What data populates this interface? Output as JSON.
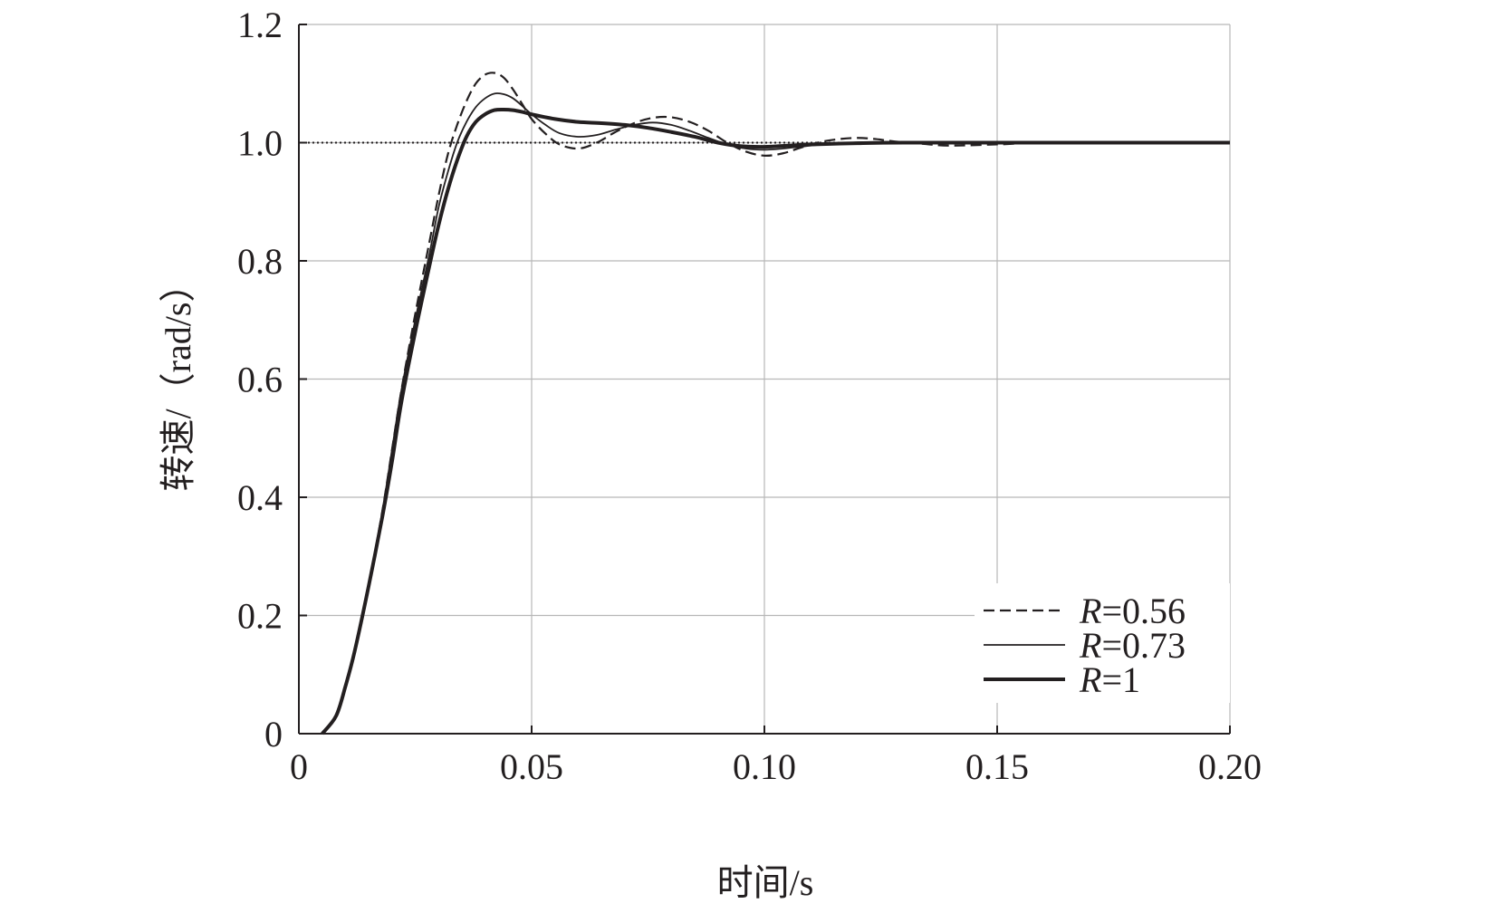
{
  "chart_data": {
    "type": "line",
    "title": "",
    "xlabel": "时间/s",
    "ylabel": "转速/（rad/s）",
    "xlim": [
      0,
      0.2
    ],
    "ylim": [
      0,
      1.2
    ],
    "xticks": [
      0,
      0.05,
      0.1,
      0.15,
      0.2
    ],
    "xtick_labels": [
      "0",
      "0.05",
      "0.10",
      "0.15",
      "0.20"
    ],
    "yticks": [
      0,
      0.2,
      0.4,
      0.6,
      0.8,
      1.0,
      1.2
    ],
    "ytick_labels": [
      "0",
      "0.2",
      "0.4",
      "0.6",
      "0.8",
      "1.0",
      "1.2"
    ],
    "grid": true,
    "legend_position": "bottom-right",
    "reference_line": {
      "y": 1.0,
      "style": "dotted"
    },
    "series": [
      {
        "name": "R=0.56",
        "legend_italic": "R",
        "legend_rest": "=0.56",
        "style": "dashed",
        "color": "#231f20",
        "x": [
          0.005,
          0.008,
          0.01,
          0.012,
          0.015,
          0.018,
          0.02,
          0.022,
          0.025,
          0.028,
          0.03,
          0.032,
          0.034,
          0.036,
          0.038,
          0.04,
          0.042,
          0.044,
          0.046,
          0.048,
          0.05,
          0.053,
          0.056,
          0.06,
          0.064,
          0.068,
          0.072,
          0.076,
          0.08,
          0.084,
          0.088,
          0.092,
          0.096,
          0.1,
          0.104,
          0.108,
          0.112,
          0.116,
          0.12,
          0.124,
          0.128,
          0.134,
          0.14,
          0.15,
          0.16,
          0.17,
          0.18,
          0.19,
          0.2
        ],
        "y": [
          0.0,
          0.03,
          0.08,
          0.14,
          0.25,
          0.38,
          0.48,
          0.58,
          0.71,
          0.83,
          0.91,
          0.98,
          1.03,
          1.07,
          1.1,
          1.115,
          1.118,
          1.11,
          1.09,
          1.065,
          1.04,
          1.015,
          0.997,
          0.99,
          1.0,
          1.018,
          1.033,
          1.042,
          1.043,
          1.035,
          1.02,
          1.0,
          0.985,
          0.978,
          0.982,
          0.992,
          1.001,
          1.006,
          1.008,
          1.006,
          1.002,
          0.998,
          0.995,
          0.997,
          1.0,
          1.0,
          1.0,
          1.0,
          1.0
        ]
      },
      {
        "name": "R=0.73",
        "legend_italic": "R",
        "legend_rest": "=0.73",
        "style": "thin",
        "color": "#231f20",
        "x": [
          0.005,
          0.008,
          0.01,
          0.012,
          0.015,
          0.018,
          0.02,
          0.022,
          0.025,
          0.028,
          0.03,
          0.032,
          0.034,
          0.036,
          0.038,
          0.04,
          0.042,
          0.044,
          0.046,
          0.048,
          0.05,
          0.053,
          0.056,
          0.06,
          0.064,
          0.068,
          0.072,
          0.076,
          0.08,
          0.084,
          0.088,
          0.092,
          0.096,
          0.1,
          0.104,
          0.11,
          0.116,
          0.122,
          0.13,
          0.14,
          0.15,
          0.16,
          0.18,
          0.2
        ],
        "y": [
          0.0,
          0.03,
          0.08,
          0.14,
          0.25,
          0.38,
          0.48,
          0.58,
          0.7,
          0.81,
          0.89,
          0.95,
          1.0,
          1.035,
          1.06,
          1.075,
          1.083,
          1.082,
          1.075,
          1.062,
          1.048,
          1.03,
          1.016,
          1.01,
          1.013,
          1.022,
          1.03,
          1.034,
          1.03,
          1.02,
          1.008,
          0.997,
          0.99,
          0.988,
          0.99,
          0.995,
          0.999,
          1.001,
          1.001,
          0.999,
          0.999,
          1.0,
          1.0,
          1.0
        ]
      },
      {
        "name": "R=1",
        "legend_italic": "R",
        "legend_rest": "=1",
        "style": "thick",
        "color": "#231f20",
        "x": [
          0.005,
          0.008,
          0.01,
          0.012,
          0.015,
          0.018,
          0.02,
          0.022,
          0.025,
          0.028,
          0.03,
          0.032,
          0.034,
          0.036,
          0.038,
          0.04,
          0.042,
          0.044,
          0.046,
          0.048,
          0.05,
          0.055,
          0.06,
          0.065,
          0.07,
          0.075,
          0.08,
          0.085,
          0.09,
          0.095,
          0.1,
          0.105,
          0.11,
          0.12,
          0.13,
          0.15,
          0.17,
          0.2
        ],
        "y": [
          0.0,
          0.03,
          0.08,
          0.14,
          0.25,
          0.37,
          0.46,
          0.56,
          0.68,
          0.79,
          0.86,
          0.92,
          0.97,
          1.01,
          1.035,
          1.048,
          1.055,
          1.056,
          1.055,
          1.052,
          1.048,
          1.04,
          1.035,
          1.033,
          1.03,
          1.025,
          1.018,
          1.01,
          1.0,
          0.994,
          0.993,
          0.995,
          0.997,
          0.999,
          1.0,
          1.0,
          1.0,
          1.0
        ]
      }
    ]
  }
}
